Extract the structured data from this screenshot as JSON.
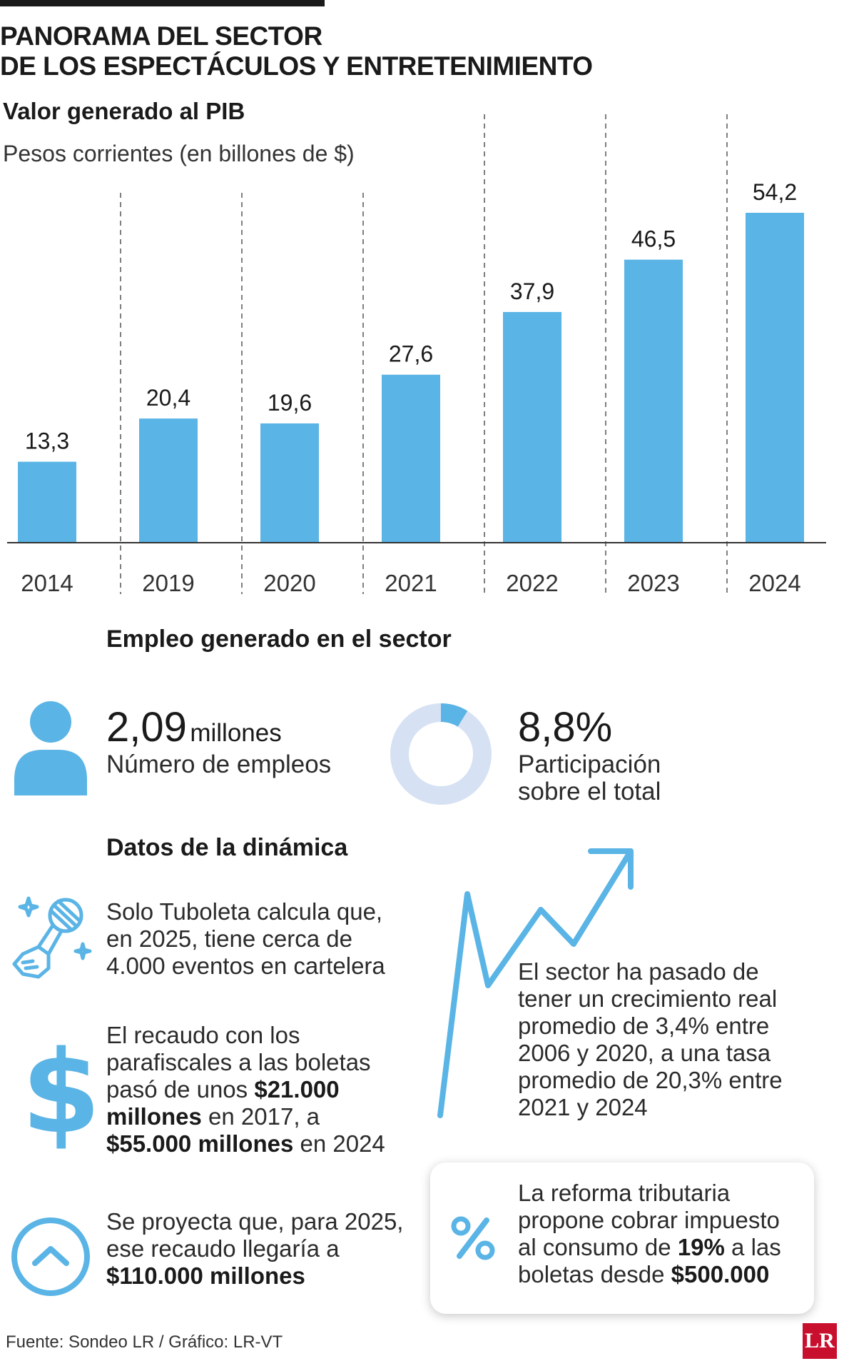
{
  "header": {
    "title_line1": "PANORAMA DEL SECTOR",
    "title_line2": "DE LOS ESPECTÁCULOS Y ENTRETENIMIENTO"
  },
  "chart_data": {
    "type": "bar",
    "title": "Valor generado al PIB",
    "subtitle": "Pesos corrientes (en billones de $)",
    "categories": [
      "2014",
      "2019",
      "2020",
      "2021",
      "2022",
      "2023",
      "2024"
    ],
    "values": [
      13.3,
      20.4,
      19.6,
      27.6,
      37.9,
      46.5,
      54.2
    ],
    "value_labels": [
      "13,3",
      "20,4",
      "19,6",
      "27,6",
      "37,9",
      "46,5",
      "54,2"
    ],
    "ylim": [
      0,
      54.2
    ],
    "grid": false,
    "bar_color": "#5ab4e5"
  },
  "employment": {
    "heading": "Empleo generado en el sector",
    "jobs_value": "2,09",
    "jobs_unit": "millones",
    "jobs_label": "Número de empleos",
    "share_value": "8,8%",
    "share_fraction": 0.088,
    "share_label_line1": "Participación",
    "share_label_line2": "sobre el total"
  },
  "dynamics": {
    "heading": "Datos de la dinámica",
    "tuboleta_lines": [
      "Solo Tuboleta calcula que,",
      "en 2025, tiene cerca de",
      "4.000 eventos en cartelera"
    ],
    "recaudo": {
      "line1": "El recaudo con los",
      "line2": "parafiscales a las boletas",
      "line3_pre": "pasó de unos ",
      "line3_bold": "$21.000",
      "line4_bold": "millones",
      "line4_post": " en 2017, a",
      "line5_bold": "$55.000 millones",
      "line5_post": " en 2024"
    },
    "projection": {
      "line1": "Se proyecta que, para 2025,",
      "line2": "ese recaudo llegaría a",
      "line3_bold": "$110.000 millones"
    },
    "growth_lines": [
      "El sector ha pasado de",
      "tener un crecimiento real",
      "promedio de 3,4% entre",
      "2006 y 2020, a una tasa",
      "promedio de 20,3% entre",
      "2021 y 2024"
    ],
    "reform": {
      "line1": "La reforma tributaria",
      "line2": "propone cobrar impuesto",
      "line3_pre": "al consumo de ",
      "line3_bold": "19%",
      "line3_post": " a las",
      "line4_pre": "boletas desde ",
      "line4_bold": "$500.000"
    }
  },
  "icons": {
    "person": "person-icon",
    "donut": "share-donut",
    "microphone": "microphone-hand-icon",
    "dollar": "dollar-icon",
    "chevron_up_circle": "chevron-up-circle-icon",
    "trend_arrow": "trend-arrow-icon",
    "percent": "percent-icon",
    "accent_color": "#5ab4e5",
    "donut_bg_color": "#d6e2f3"
  },
  "footer": {
    "source": "Fuente: Sondeo LR / Gráfico: LR-VT",
    "logo": "LR"
  }
}
